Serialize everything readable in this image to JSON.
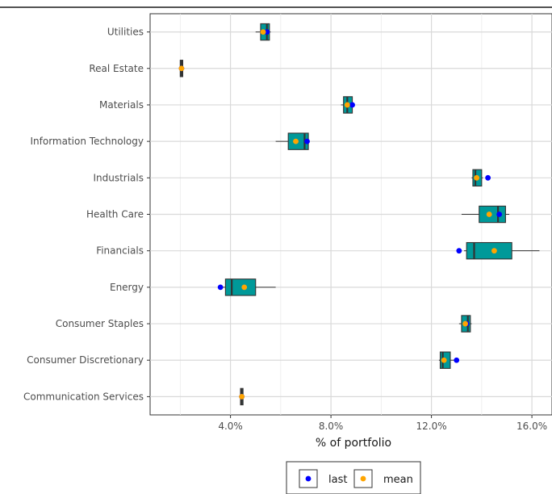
{
  "chart_data": {
    "type": "box",
    "orientation": "horizontal",
    "title": "",
    "xlabel": "% of portfolio",
    "ylabel": "",
    "xlim": [
      0.8,
      16.8
    ],
    "xticks": [
      4.0,
      8.0,
      12.0,
      16.0
    ],
    "xtick_labels": [
      "4.0%",
      "8.0%",
      "12.0%",
      "16.0%"
    ],
    "grid": true,
    "legend_position": "bottom",
    "box_color": "#009999",
    "categories": [
      "Communication Services",
      "Consumer Discretionary",
      "Consumer Staples",
      "Energy",
      "Financials",
      "Health Care",
      "Industrials",
      "Information Technology",
      "Materials",
      "Real Estate",
      "Utilities"
    ],
    "boxes": [
      {
        "whislo": 4.4,
        "q1": 4.4,
        "med": 4.45,
        "q3": 4.5,
        "whishi": 4.5
      },
      {
        "whislo": 12.3,
        "q1": 12.35,
        "med": 12.45,
        "q3": 12.75,
        "whishi": 12.9
      },
      {
        "whislo": 13.1,
        "q1": 13.2,
        "med": 13.45,
        "q3": 13.55,
        "whishi": 13.6
      },
      {
        "whislo": 3.6,
        "q1": 3.8,
        "med": 4.05,
        "q3": 5.0,
        "whishi": 5.8
      },
      {
        "whislo": 13.3,
        "q1": 13.4,
        "med": 13.7,
        "q3": 15.2,
        "whishi": 16.3
      },
      {
        "whislo": 13.2,
        "q1": 13.9,
        "med": 14.65,
        "q3": 14.95,
        "whishi": 15.1
      },
      {
        "whislo": 13.6,
        "q1": 13.65,
        "med": 13.75,
        "q3": 14.0,
        "whishi": 14.05
      },
      {
        "whislo": 5.8,
        "q1": 6.3,
        "med": 6.95,
        "q3": 7.1,
        "whishi": 7.1
      },
      {
        "whislo": 8.4,
        "q1": 8.5,
        "med": 8.65,
        "q3": 8.85,
        "whishi": 8.9
      },
      {
        "whislo": 2.0,
        "q1": 2.0,
        "med": 2.05,
        "q3": 2.1,
        "whishi": 2.1
      },
      {
        "whislo": 5.0,
        "q1": 5.2,
        "med": 5.45,
        "q3": 5.55,
        "whishi": 5.6
      }
    ],
    "series": [
      {
        "name": "last",
        "color": "#0000ff",
        "values": [
          4.45,
          13.0,
          13.4,
          3.6,
          13.1,
          14.7,
          14.25,
          7.05,
          8.85,
          2.05,
          5.45
        ]
      },
      {
        "name": "mean",
        "color": "#ffa500",
        "values": [
          4.45,
          12.5,
          13.35,
          4.55,
          14.5,
          14.3,
          13.8,
          6.6,
          8.65,
          2.05,
          5.3
        ]
      }
    ]
  }
}
